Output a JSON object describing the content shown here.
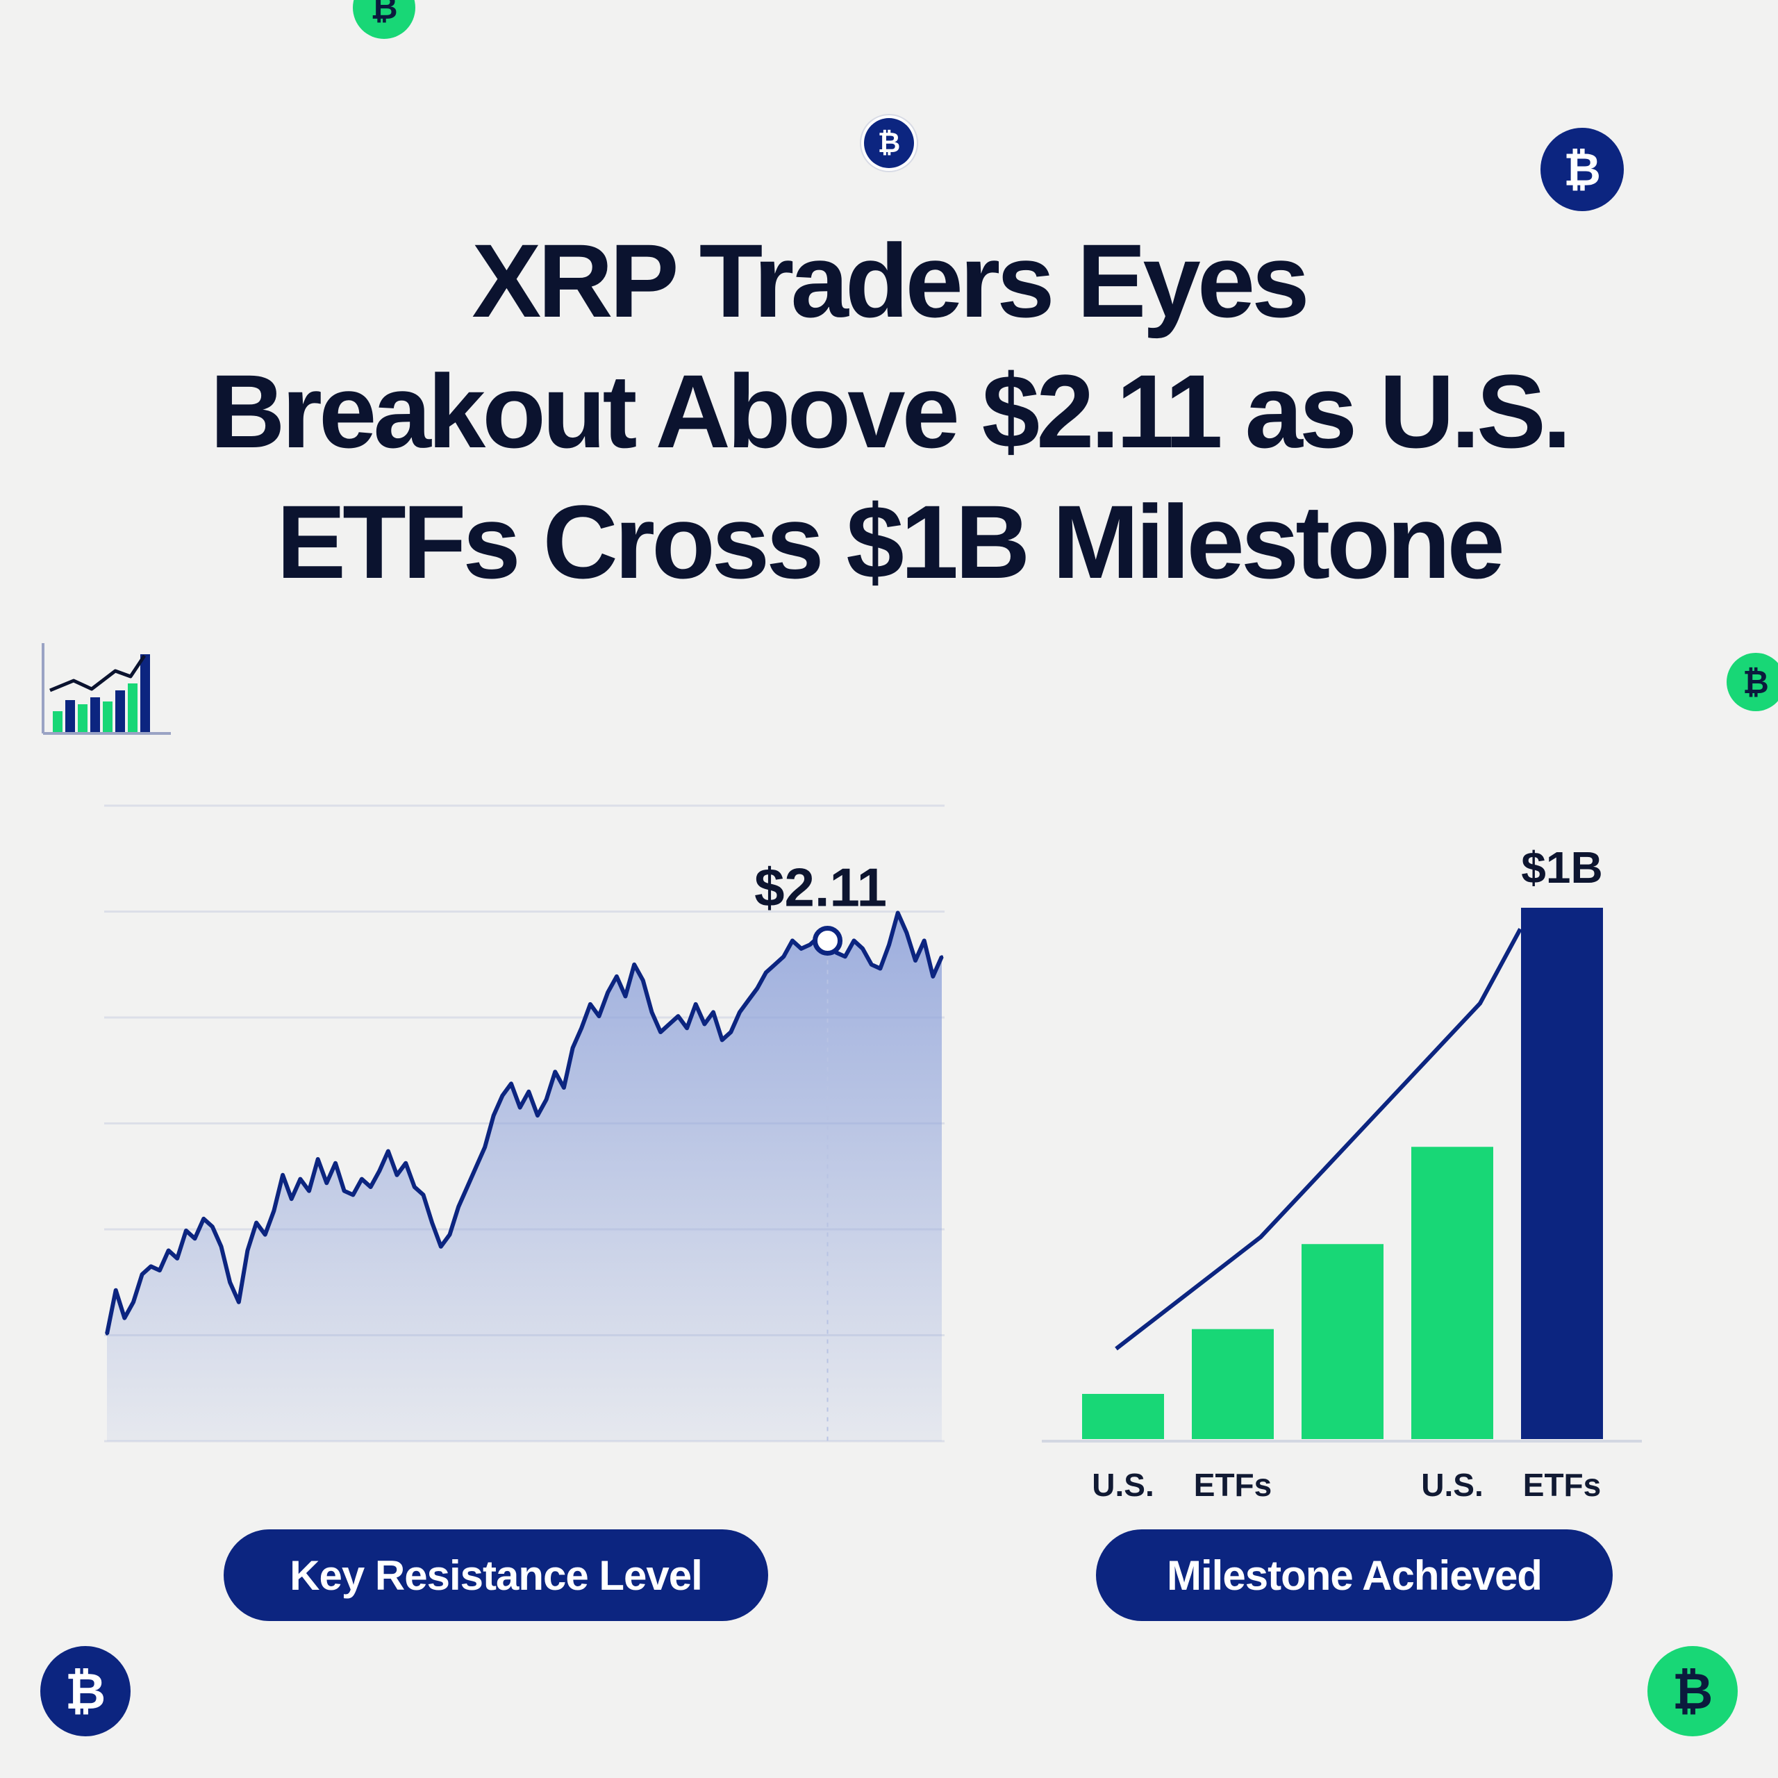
{
  "headline": {
    "line1": "XRP Traders Eyes",
    "line2": "Breakout Above $2.11 as U.S.",
    "line3": "ETFs Cross $1B Milestone"
  },
  "coin_symbol": "₿",
  "colors": {
    "navy": "#0c2580",
    "green": "#18d776",
    "text": "#0b132f",
    "area_fill": "#8ea2da"
  },
  "icons": {
    "top_left": "bar-line-chart-icon"
  },
  "buttons": {
    "left": "Key Resistance Level",
    "right": "Milestone Achieved"
  },
  "chart_data": [
    {
      "type": "area",
      "title": "",
      "xlabel": "",
      "ylabel": "",
      "grid": true,
      "annotation": {
        "label": "$2.11",
        "point_index": 82
      },
      "series": [
        {
          "values": [
            1.12,
            1.23,
            1.16,
            1.2,
            1.27,
            1.29,
            1.28,
            1.33,
            1.31,
            1.38,
            1.36,
            1.41,
            1.39,
            1.34,
            1.25,
            1.2,
            1.33,
            1.4,
            1.37,
            1.43,
            1.52,
            1.46,
            1.51,
            1.48,
            1.56,
            1.5,
            1.55,
            1.48,
            1.47,
            1.51,
            1.49,
            1.53,
            1.58,
            1.52,
            1.55,
            1.49,
            1.47,
            1.4,
            1.34,
            1.37,
            1.44,
            1.49,
            1.54,
            1.59,
            1.67,
            1.72,
            1.75,
            1.69,
            1.73,
            1.67,
            1.71,
            1.78,
            1.74,
            1.84,
            1.89,
            1.95,
            1.92,
            1.98,
            2.02,
            1.97,
            2.05,
            2.01,
            1.93,
            1.88,
            1.9,
            1.92,
            1.89,
            1.95,
            1.9,
            1.93,
            1.86,
            1.88,
            1.93,
            1.96,
            1.99,
            2.03,
            2.05,
            2.07,
            2.11,
            2.09,
            2.1,
            2.12,
            2.11,
            2.08,
            2.07,
            2.11,
            2.09,
            2.05,
            2.04,
            2.1,
            2.18,
            2.13,
            2.06,
            2.11,
            2.02,
            2.07
          ],
          "ylim": [
            0.85,
            2.45
          ]
        }
      ]
    },
    {
      "type": "bar",
      "title": "",
      "xlabel": "",
      "ylabel": "",
      "categories": [
        "U.S.",
        "ETFs",
        "",
        "U.S.",
        "ETFs"
      ],
      "values": [
        0.085,
        0.207,
        0.367,
        0.55,
        1.0
      ],
      "bar_colors": [
        "#18d776",
        "#18d776",
        "#18d776",
        "#18d776",
        "#0c2580"
      ],
      "data_labels": [
        "",
        "",
        "",
        "",
        "$1B"
      ],
      "trend_line": [
        0.17,
        0.38,
        0.6,
        0.82,
        0.96
      ],
      "ylim": [
        0,
        1.0
      ]
    }
  ]
}
